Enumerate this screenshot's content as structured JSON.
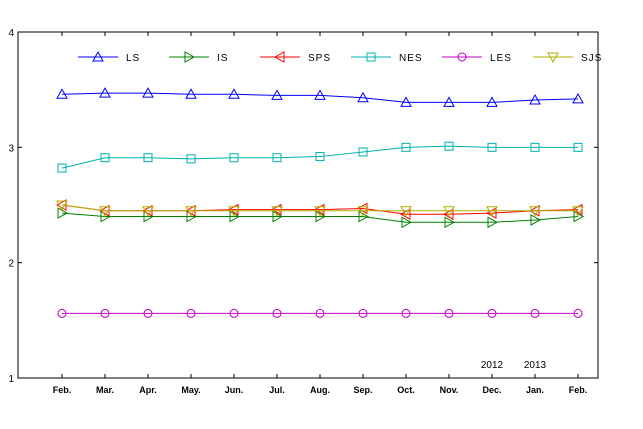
{
  "chart_data": {
    "type": "line",
    "title": "",
    "xlabel": "",
    "ylabel": "",
    "categories": [
      "Feb.",
      "Mar.",
      "Apr.",
      "May.",
      "Jun.",
      "Jul.",
      "Aug.",
      "Sep.",
      "Oct.",
      "Nov.",
      "Dec.",
      "Jan.",
      "Feb."
    ],
    "ylim": [
      1,
      4
    ],
    "yticks": [
      "1",
      "2",
      "3",
      "4"
    ],
    "grid": false,
    "legend_position": "top",
    "year_annotations": [
      {
        "text": "2012",
        "category_index": 10
      },
      {
        "text": "2013",
        "category_index": 11
      }
    ],
    "series": [
      {
        "name": "LS",
        "color": "#0000ff",
        "marker": "triangle-up",
        "values": [
          3.46,
          3.47,
          3.47,
          3.46,
          3.46,
          3.45,
          3.45,
          3.43,
          3.39,
          3.39,
          3.39,
          3.41,
          3.42
        ]
      },
      {
        "name": "IS",
        "color": "#008000",
        "marker": "triangle-right",
        "values": [
          2.43,
          2.4,
          2.4,
          2.4,
          2.4,
          2.4,
          2.4,
          2.4,
          2.35,
          2.35,
          2.35,
          2.37,
          2.4
        ]
      },
      {
        "name": "SPS",
        "color": "#ff0000",
        "marker": "triangle-left",
        "values": [
          2.5,
          2.45,
          2.45,
          2.45,
          2.46,
          2.46,
          2.46,
          2.47,
          2.42,
          2.42,
          2.43,
          2.45,
          2.46
        ]
      },
      {
        "name": "NES",
        "color": "#00b0b0",
        "marker": "square",
        "values": [
          2.82,
          2.91,
          2.91,
          2.9,
          2.91,
          2.91,
          2.92,
          2.96,
          3.0,
          3.01,
          3.0,
          3.0,
          3.0
        ]
      },
      {
        "name": "LES",
        "color": "#c000c0",
        "marker": "circle",
        "values": [
          1.56,
          1.56,
          1.56,
          1.56,
          1.56,
          1.56,
          1.56,
          1.56,
          1.56,
          1.56,
          1.56,
          1.56,
          1.56
        ]
      },
      {
        "name": "SJS",
        "color": "#b0b000",
        "marker": "triangle-down",
        "values": [
          2.5,
          2.45,
          2.45,
          2.45,
          2.45,
          2.45,
          2.45,
          2.45,
          2.45,
          2.45,
          2.45,
          2.45,
          2.45
        ]
      }
    ]
  }
}
